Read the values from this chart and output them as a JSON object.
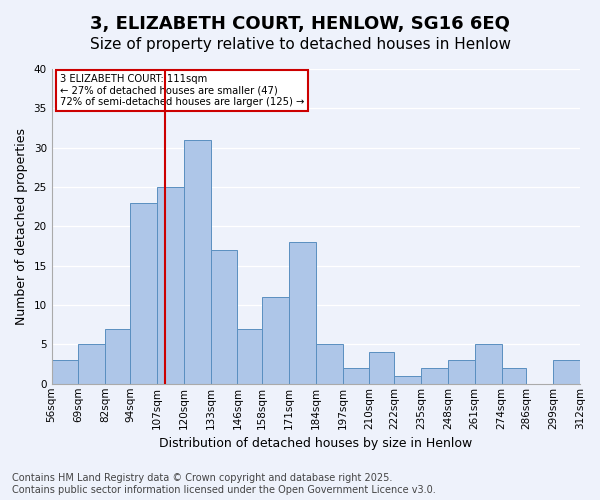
{
  "title": "3, ELIZABETH COURT, HENLOW, SG16 6EQ",
  "subtitle": "Size of property relative to detached houses in Henlow",
  "xlabel": "Distribution of detached houses by size in Henlow",
  "ylabel": "Number of detached properties",
  "bin_labels": [
    "56sqm",
    "69sqm",
    "82sqm",
    "94sqm",
    "107sqm",
    "120sqm",
    "133sqm",
    "146sqm",
    "158sqm",
    "171sqm",
    "184sqm",
    "197sqm",
    "210sqm",
    "222sqm",
    "235sqm",
    "248sqm",
    "261sqm",
    "274sqm",
    "286sqm",
    "299sqm",
    "312sqm"
  ],
  "bin_edges": [
    56,
    69,
    82,
    94,
    107,
    120,
    133,
    146,
    158,
    171,
    184,
    197,
    210,
    222,
    235,
    248,
    261,
    274,
    286,
    299,
    312
  ],
  "bar_heights": [
    3,
    5,
    7,
    23,
    25,
    31,
    17,
    7,
    11,
    18,
    5,
    2,
    4,
    1,
    2,
    3,
    5,
    2,
    0,
    3
  ],
  "bar_color": "#aec6e8",
  "bar_edge_color": "#5a8fc0",
  "background_color": "#eef2fb",
  "grid_color": "#ffffff",
  "property_line_x": 111,
  "property_line_color": "#cc0000",
  "annotation_text": "3 ELIZABETH COURT: 111sqm\n← 27% of detached houses are smaller (47)\n72% of semi-detached houses are larger (125) →",
  "annotation_box_color": "#cc0000",
  "ylim": [
    0,
    40
  ],
  "yticks": [
    0,
    5,
    10,
    15,
    20,
    25,
    30,
    35,
    40
  ],
  "footer": "Contains HM Land Registry data © Crown copyright and database right 2025.\nContains public sector information licensed under the Open Government Licence v3.0.",
  "title_fontsize": 13,
  "subtitle_fontsize": 11,
  "label_fontsize": 9,
  "tick_fontsize": 7.5,
  "footer_fontsize": 7
}
